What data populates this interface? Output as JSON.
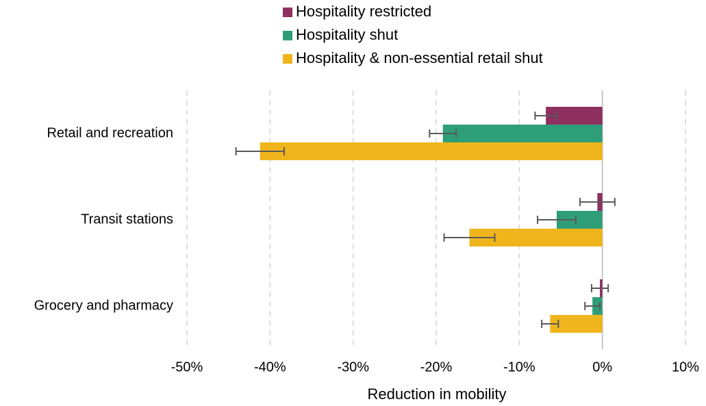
{
  "chart_data": {
    "type": "hbar",
    "x_label": "Reduction in mobility",
    "categories": [
      "Retail and recreation",
      "Transit stations",
      "Grocery and pharmacy"
    ],
    "series": [
      {
        "name": "Hospitality restricted",
        "color": "#8e3060",
        "values": [
          -6.8,
          -0.6,
          -0.3
        ],
        "errors": [
          1.3,
          2.1,
          1.0
        ]
      },
      {
        "name": "Hospitality shut",
        "color": "#2e9e78",
        "values": [
          -19.2,
          -5.5,
          -1.2
        ],
        "errors": [
          1.6,
          2.3,
          0.9
        ]
      },
      {
        "name": "Hospitality & non-essential retail shut",
        "color": "#f0b51c",
        "values": [
          -41.2,
          -16.0,
          -6.3
        ],
        "errors": [
          2.9,
          3.05,
          1.0
        ]
      }
    ],
    "xlim": [
      -50,
      10
    ],
    "xticks": [
      {
        "value": -50,
        "label": "-50%"
      },
      {
        "value": -40,
        "label": "-40%"
      },
      {
        "value": -30,
        "label": "-30%"
      },
      {
        "value": -20,
        "label": "-20%"
      },
      {
        "value": -10,
        "label": "-10%"
      },
      {
        "value": 0,
        "label": "0%"
      },
      {
        "value": 10,
        "label": "10%"
      }
    ],
    "grid": true,
    "legend_position": "top"
  }
}
